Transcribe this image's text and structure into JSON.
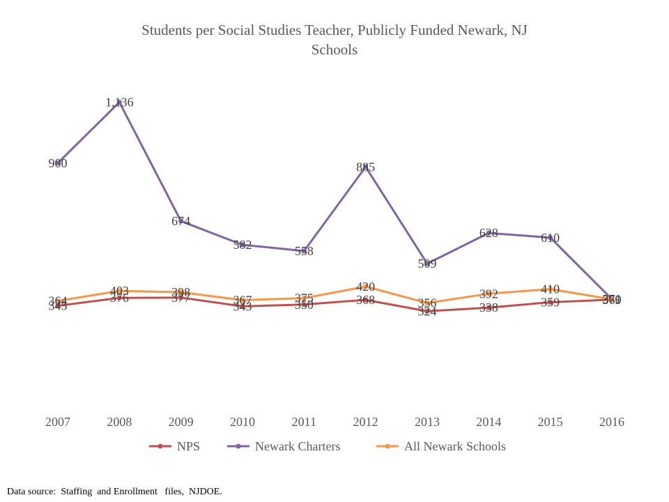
{
  "chart_data": {
    "type": "line",
    "title_lines": [
      "Students per Social Studies Teacher, Publicly Funded Newark, NJ",
      "Schools"
    ],
    "categories": [
      "2007",
      "2008",
      "2009",
      "2010",
      "2011",
      "2012",
      "2013",
      "2014",
      "2015",
      "2016"
    ],
    "series": [
      {
        "name": "NPS",
        "color": "#C0504D",
        "values": [
          345,
          376,
          377,
          343,
          350,
          368,
          324,
          338,
          359,
          369
        ],
        "labels": [
          "345",
          "376",
          "377",
          "343",
          "350",
          "368",
          "324",
          "338",
          "359",
          "369"
        ]
      },
      {
        "name": "Newark Charters",
        "color": "#8064A2",
        "values": [
          900,
          1136,
          674,
          582,
          558,
          885,
          509,
          628,
          610,
          371
        ],
        "labels": [
          "900",
          "1,136",
          "674",
          "582",
          "558",
          "885",
          "509",
          "628",
          "610",
          "371"
        ]
      },
      {
        "name": "All Newark Schools",
        "color": "#F79646",
        "values": [
          364,
          403,
          398,
          367,
          375,
          420,
          356,
          392,
          410,
          370
        ],
        "labels": [
          "364",
          "403",
          "398",
          "367",
          "375",
          "420",
          "356",
          "392",
          "410",
          "370"
        ]
      }
    ],
    "ylim": [
      0,
      1200
    ],
    "grid": false,
    "legend_position": "bottom"
  },
  "footer": {
    "source": "Data source:  Staffing  and Enrollment   files,  NJDOE."
  }
}
